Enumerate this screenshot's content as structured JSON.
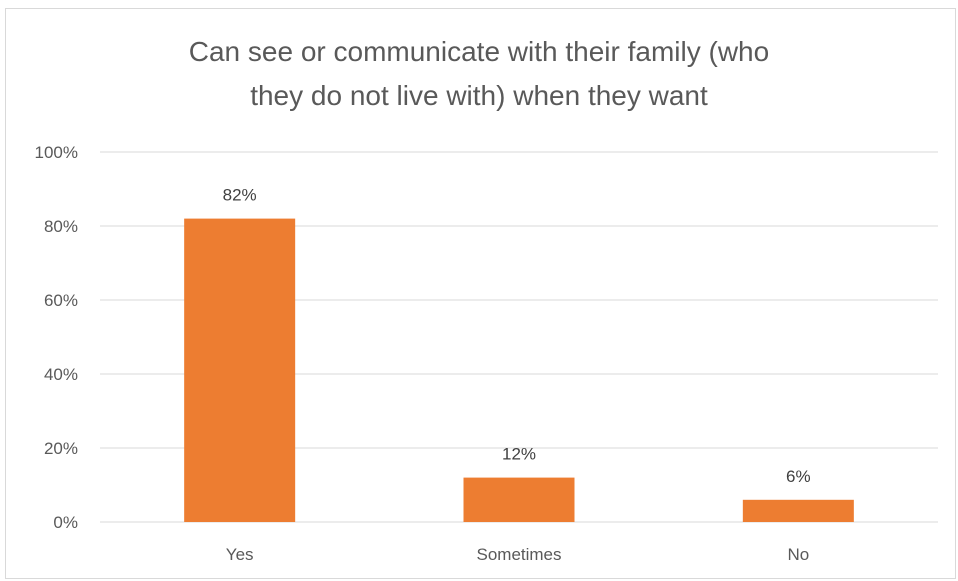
{
  "chart_data": {
    "type": "bar",
    "title": "Can see or communicate with their family (who they do not live with) when they want",
    "title_lines": [
      "Can see or communicate with their family (who",
      "they do not live with) when they want"
    ],
    "categories": [
      "Yes",
      "Sometimes",
      "No"
    ],
    "values": [
      82,
      12,
      6
    ],
    "data_labels": [
      "82%",
      "12%",
      "6%"
    ],
    "ylim": [
      0,
      100
    ],
    "y_ticks": [
      0,
      20,
      40,
      60,
      80,
      100
    ],
    "y_tick_labels": [
      "0%",
      "20%",
      "40%",
      "60%",
      "80%",
      "100%"
    ],
    "xlabel": "",
    "ylabel": "",
    "grid": true,
    "legend": "none",
    "bar_color": "#ED7D31",
    "grid_color": "#D9D9D9"
  }
}
